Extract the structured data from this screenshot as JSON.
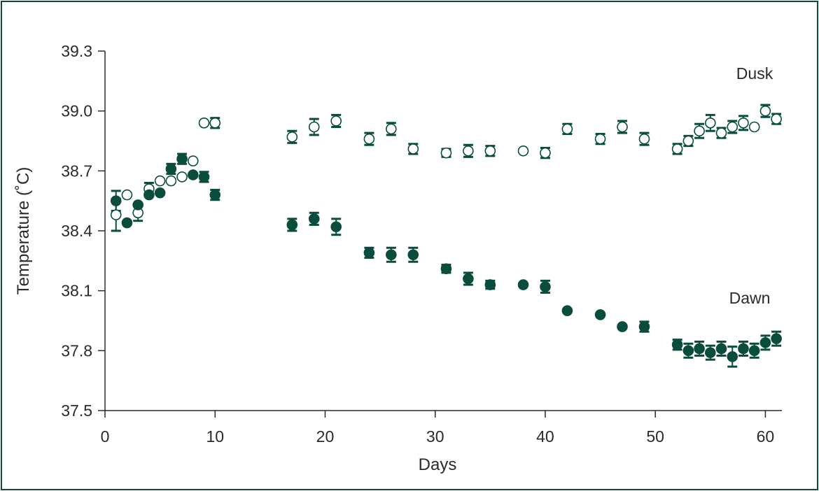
{
  "chart_data": {
    "type": "scatter",
    "title": "",
    "xlabel": "Days",
    "ylabel": "Temperature (˚C)",
    "xlim": [
      0,
      61.5
    ],
    "ylim": [
      37.5,
      39.3
    ],
    "xticks": [
      0,
      10,
      20,
      30,
      40,
      50,
      60
    ],
    "yticks": [
      37.5,
      37.8,
      38.1,
      38.4,
      38.7,
      39.0,
      39.3
    ],
    "ytick_labels": [
      "37.5",
      "37.8",
      "38.1",
      "38.4",
      "38.7",
      "39.0",
      "39.3"
    ],
    "grid": false,
    "colors": {
      "marker": "#0b4d3c",
      "axis": "#2b2b2b",
      "frame": "#0b4d3c"
    },
    "series": [
      {
        "name": "Dusk",
        "marker": "open-circle",
        "points": [
          {
            "x": 1,
            "y": 38.48,
            "err": 0.08
          },
          {
            "x": 2,
            "y": 38.58,
            "err": 0
          },
          {
            "x": 3,
            "y": 38.49,
            "err": 0.04
          },
          {
            "x": 4,
            "y": 38.61,
            "err": 0.03
          },
          {
            "x": 5,
            "y": 38.65,
            "err": 0
          },
          {
            "x": 6,
            "y": 38.65,
            "err": 0
          },
          {
            "x": 7,
            "y": 38.67,
            "err": 0
          },
          {
            "x": 8,
            "y": 38.75,
            "err": 0
          },
          {
            "x": 9,
            "y": 38.94,
            "err": 0
          },
          {
            "x": 10,
            "y": 38.94,
            "err": 0.025
          },
          {
            "x": 17,
            "y": 38.87,
            "err": 0.03
          },
          {
            "x": 19,
            "y": 38.92,
            "err": 0.04
          },
          {
            "x": 21,
            "y": 38.95,
            "err": 0.03
          },
          {
            "x": 24,
            "y": 38.86,
            "err": 0.03
          },
          {
            "x": 26,
            "y": 38.91,
            "err": 0.03
          },
          {
            "x": 28,
            "y": 38.81,
            "err": 0.025
          },
          {
            "x": 31,
            "y": 38.79,
            "err": 0.02
          },
          {
            "x": 33,
            "y": 38.8,
            "err": 0.03
          },
          {
            "x": 35,
            "y": 38.8,
            "err": 0.025
          },
          {
            "x": 38,
            "y": 38.8,
            "err": 0
          },
          {
            "x": 40,
            "y": 38.79,
            "err": 0.025
          },
          {
            "x": 42,
            "y": 38.91,
            "err": 0.025
          },
          {
            "x": 45,
            "y": 38.86,
            "err": 0.025
          },
          {
            "x": 47,
            "y": 38.92,
            "err": 0.03
          },
          {
            "x": 49,
            "y": 38.86,
            "err": 0.03
          },
          {
            "x": 52,
            "y": 38.81,
            "err": 0.025
          },
          {
            "x": 53,
            "y": 38.85,
            "err": 0.025
          },
          {
            "x": 54,
            "y": 38.9,
            "err": 0.035
          },
          {
            "x": 55,
            "y": 38.94,
            "err": 0.04
          },
          {
            "x": 56,
            "y": 38.89,
            "err": 0.025
          },
          {
            "x": 57,
            "y": 38.92,
            "err": 0.03
          },
          {
            "x": 58,
            "y": 38.94,
            "err": 0.035
          },
          {
            "x": 59,
            "y": 38.92,
            "err": 0
          },
          {
            "x": 60,
            "y": 39.0,
            "err": 0.03
          },
          {
            "x": 61,
            "y": 38.96,
            "err": 0.025
          }
        ]
      },
      {
        "name": "Dawn",
        "marker": "filled-circle",
        "points": [
          {
            "x": 1,
            "y": 38.55,
            "err": 0.05
          },
          {
            "x": 2,
            "y": 38.44,
            "err": 0
          },
          {
            "x": 3,
            "y": 38.53,
            "err": 0
          },
          {
            "x": 4,
            "y": 38.58,
            "err": 0
          },
          {
            "x": 5,
            "y": 38.59,
            "err": 0
          },
          {
            "x": 6,
            "y": 38.71,
            "err": 0.025
          },
          {
            "x": 7,
            "y": 38.76,
            "err": 0.025
          },
          {
            "x": 8,
            "y": 38.68,
            "err": 0
          },
          {
            "x": 9,
            "y": 38.67,
            "err": 0.025
          },
          {
            "x": 10,
            "y": 38.58,
            "err": 0.025
          },
          {
            "x": 17,
            "y": 38.43,
            "err": 0.03
          },
          {
            "x": 19,
            "y": 38.46,
            "err": 0.03
          },
          {
            "x": 21,
            "y": 38.42,
            "err": 0.04
          },
          {
            "x": 24,
            "y": 38.29,
            "err": 0.025
          },
          {
            "x": 26,
            "y": 38.28,
            "err": 0.035
          },
          {
            "x": 28,
            "y": 38.28,
            "err": 0.035
          },
          {
            "x": 31,
            "y": 38.21,
            "err": 0.02
          },
          {
            "x": 33,
            "y": 38.16,
            "err": 0.03
          },
          {
            "x": 35,
            "y": 38.13,
            "err": 0.02
          },
          {
            "x": 38,
            "y": 38.13,
            "err": 0
          },
          {
            "x": 40,
            "y": 38.12,
            "err": 0.03
          },
          {
            "x": 42,
            "y": 38.0,
            "err": 0
          },
          {
            "x": 45,
            "y": 37.98,
            "err": 0
          },
          {
            "x": 47,
            "y": 37.92,
            "err": 0
          },
          {
            "x": 49,
            "y": 37.92,
            "err": 0.025
          },
          {
            "x": 52,
            "y": 37.83,
            "err": 0.025
          },
          {
            "x": 53,
            "y": 37.8,
            "err": 0.035
          },
          {
            "x": 54,
            "y": 37.81,
            "err": 0.035
          },
          {
            "x": 55,
            "y": 37.79,
            "err": 0.035
          },
          {
            "x": 56,
            "y": 37.81,
            "err": 0.035
          },
          {
            "x": 57,
            "y": 37.77,
            "err": 0.05
          },
          {
            "x": 58,
            "y": 37.81,
            "err": 0.035
          },
          {
            "x": 59,
            "y": 37.8,
            "err": 0.035
          },
          {
            "x": 60,
            "y": 37.84,
            "err": 0.035
          },
          {
            "x": 61,
            "y": 37.86,
            "err": 0.035
          }
        ]
      }
    ]
  }
}
